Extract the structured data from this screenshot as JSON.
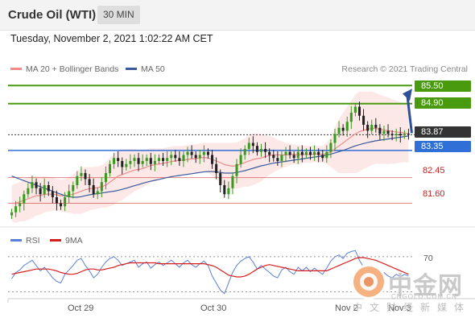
{
  "header": {
    "instrument": "Crude Oil (WTI)",
    "timeframe": "30 MIN"
  },
  "timestamp": "Tuesday, November 2, 2021 1:02:22 AM CET",
  "legend": {
    "ma20_label": "MA 20 + Bollinger Bands",
    "ma50_label": "MA 50",
    "credit": "Research © 2021 Trading Central",
    "ma20_color": "#f08a8a",
    "ma50_color": "#3a5a9a",
    "band_color": "#fde2e2"
  },
  "rsi_legend": {
    "rsi_label": "RSI",
    "ma9_label": "9MA",
    "rsi_color": "#5b7fd8",
    "ma9_color": "#d81c1c"
  },
  "levels": {
    "target2": "85.50",
    "target1": "84.90",
    "last": "83.87",
    "pivot": "83.35",
    "support1": "82.45",
    "support2": "81.60"
  },
  "colors": {
    "resistance": "#4a9a10",
    "pivot": "#2f6fd6",
    "last": "#333333",
    "support": "#cc2020",
    "arrow": "#2f4f9a"
  },
  "x_axis": {
    "ticks": [
      "Oct 29",
      "Oct 30",
      "Nov 2",
      "Nov 3"
    ]
  },
  "rsi_axis": {
    "level": "70"
  },
  "watermark": {
    "logo_text": "中金网",
    "url": "CNGOLD.COM.CN",
    "sub": "中文财经新媒体"
  },
  "chart_data": {
    "type": "candlestick",
    "title": "Crude Oil (WTI)",
    "interval": "30 MIN",
    "x_ticks": [
      "Oct 29",
      "Oct 30",
      "Nov 2",
      "Nov 3"
    ],
    "ylim": [
      81.0,
      85.8
    ],
    "horizontal_levels": [
      {
        "label": "85.50",
        "value": 85.5,
        "kind": "resistance"
      },
      {
        "label": "84.90",
        "value": 84.9,
        "kind": "resistance"
      },
      {
        "label": "83.87",
        "value": 83.87,
        "kind": "last"
      },
      {
        "label": "83.35",
        "value": 83.35,
        "kind": "pivot"
      },
      {
        "label": "82.45",
        "value": 82.45,
        "kind": "support"
      },
      {
        "label": "81.60",
        "value": 81.6,
        "kind": "support"
      }
    ],
    "close": [
      81.3,
      81.5,
      81.6,
      81.9,
      82.1,
      82.3,
      82.1,
      81.9,
      82.2,
      82.0,
      81.8,
      81.6,
      81.5,
      81.8,
      82.0,
      82.2,
      82.5,
      82.6,
      82.4,
      82.2,
      81.9,
      82.0,
      82.3,
      82.6,
      82.9,
      83.1,
      83.0,
      82.8,
      82.9,
      83.0,
      83.1,
      82.9,
      83.0,
      83.1,
      82.9,
      83.0,
      83.1,
      83.0,
      83.1,
      83.2,
      83.1,
      83.0,
      83.2,
      83.3,
      83.2,
      83.1,
      83.2,
      83.3,
      83.2,
      82.9,
      82.6,
      82.2,
      81.9,
      82.1,
      82.5,
      82.9,
      83.2,
      83.4,
      83.6,
      83.5,
      83.3,
      83.4,
      83.3,
      83.2,
      83.1,
      83.0,
      83.2,
      83.3,
      83.2,
      83.1,
      83.3,
      83.2,
      83.3,
      83.2,
      83.3,
      83.2,
      83.1,
      83.3,
      83.6,
      83.9,
      84.1,
      84.0,
      84.3,
      84.6,
      84.8,
      84.5,
      84.2,
      84.0,
      84.2,
      84.1,
      83.9,
      84.0,
      83.9,
      83.85,
      83.9,
      83.85,
      83.9,
      83.87
    ],
    "ma20": [
      81.6,
      81.6,
      81.65,
      81.7,
      81.75,
      81.8,
      81.85,
      81.85,
      81.9,
      81.9,
      81.9,
      81.88,
      81.85,
      81.85,
      81.87,
      81.9,
      81.95,
      82.0,
      82.05,
      82.08,
      82.1,
      82.12,
      82.15,
      82.2,
      82.3,
      82.4,
      82.5,
      82.55,
      82.6,
      82.65,
      82.7,
      82.72,
      82.75,
      82.8,
      82.85,
      82.88,
      82.9,
      82.92,
      82.95,
      82.98,
      83.0,
      83.02,
      83.03,
      83.05,
      83.07,
      83.08,
      83.1,
      83.12,
      83.1,
      83.05,
      83.0,
      82.95,
      82.88,
      82.85,
      82.83,
      82.85,
      82.9,
      82.95,
      83.0,
      83.05,
      83.08,
      83.1,
      83.15,
      83.18,
      83.2,
      83.2,
      83.2,
      83.2,
      83.22,
      83.22,
      83.2,
      83.22,
      83.22,
      83.22,
      83.23,
      83.23,
      83.22,
      83.25,
      83.3,
      83.4,
      83.5,
      83.6,
      83.7,
      83.8,
      83.9,
      83.97,
      84.02,
      84.05,
      84.08,
      84.08,
      84.05,
      84.03,
      84.0,
      83.98,
      83.96,
      83.95,
      83.93,
      83.9
    ],
    "bollinger_upper": [
      82.2,
      82.25,
      82.3,
      82.4,
      82.45,
      82.5,
      82.5,
      82.48,
      82.5,
      82.48,
      82.45,
      82.4,
      82.38,
      82.4,
      82.45,
      82.55,
      82.65,
      82.75,
      82.8,
      82.8,
      82.8,
      82.82,
      82.85,
      82.95,
      83.1,
      83.25,
      83.35,
      83.4,
      83.4,
      83.4,
      83.4,
      83.38,
      83.38,
      83.4,
      83.42,
      83.42,
      83.42,
      83.42,
      83.45,
      83.48,
      83.5,
      83.5,
      83.5,
      83.52,
      83.55,
      83.55,
      83.58,
      83.6,
      83.6,
      83.6,
      83.6,
      83.6,
      83.6,
      83.6,
      83.6,
      83.62,
      83.68,
      83.75,
      83.85,
      83.9,
      83.9,
      83.88,
      83.85,
      83.82,
      83.78,
      83.7,
      83.65,
      83.6,
      83.58,
      83.55,
      83.52,
      83.52,
      83.5,
      83.5,
      83.5,
      83.5,
      83.5,
      83.6,
      83.8,
      84.1,
      84.4,
      84.6,
      84.8,
      85.0,
      85.2,
      85.3,
      85.3,
      85.3,
      85.3,
      85.25,
      85.2,
      85.15,
      85.1,
      85.05,
      85.0,
      84.95,
      84.9,
      84.85
    ],
    "bollinger_lower": [
      81.0,
      80.95,
      81.0,
      81.0,
      81.05,
      81.1,
      81.2,
      81.22,
      81.3,
      81.32,
      81.35,
      81.36,
      81.32,
      81.3,
      81.29,
      81.25,
      81.25,
      81.25,
      81.3,
      81.36,
      81.4,
      81.42,
      81.45,
      81.45,
      81.5,
      81.55,
      81.65,
      81.7,
      81.8,
      81.9,
      82.0,
      82.06,
      82.12,
      82.2,
      82.28,
      82.34,
      82.38,
      82.42,
      82.45,
      82.48,
      82.5,
      82.54,
      82.56,
      82.58,
      82.59,
      82.61,
      82.62,
      82.64,
      82.6,
      82.5,
      82.4,
      82.3,
      82.16,
      82.1,
      82.06,
      82.08,
      82.12,
      82.15,
      82.15,
      82.2,
      82.26,
      82.32,
      82.45,
      82.54,
      82.62,
      82.7,
      82.75,
      82.8,
      82.86,
      82.89,
      82.88,
      82.92,
      82.94,
      82.94,
      82.96,
      82.96,
      82.94,
      82.9,
      82.8,
      82.7,
      82.6,
      82.6,
      82.6,
      82.6,
      82.6,
      82.64,
      82.74,
      82.8,
      82.86,
      82.91,
      82.9,
      82.91,
      82.9,
      82.91,
      82.92,
      82.95,
      82.96,
      82.95
    ],
    "ma50": [
      82.5,
      82.45,
      82.4,
      82.35,
      82.3,
      82.25,
      82.2,
      82.15,
      82.1,
      82.05,
      82.0,
      81.95,
      81.9,
      81.85,
      81.82,
      81.8,
      81.8,
      81.82,
      81.85,
      81.88,
      81.9,
      81.92,
      81.94,
      81.96,
      81.98,
      82.0,
      82.03,
      82.06,
      82.1,
      82.14,
      82.18,
      82.22,
      82.26,
      82.3,
      82.33,
      82.36,
      82.39,
      82.42,
      82.45,
      82.48,
      82.5,
      82.52,
      82.54,
      82.56,
      82.58,
      82.6,
      82.62,
      82.64,
      82.65,
      82.65,
      82.64,
      82.62,
      82.6,
      82.6,
      82.6,
      82.62,
      82.65,
      82.68,
      82.72,
      82.76,
      82.8,
      82.84,
      82.87,
      82.9,
      82.93,
      82.95,
      82.97,
      82.99,
      83.01,
      83.03,
      83.05,
      83.07,
      83.09,
      83.11,
      83.13,
      83.15,
      83.17,
      83.2,
      83.23,
      83.27,
      83.31,
      83.35,
      83.4,
      83.45,
      83.5,
      83.54,
      83.58,
      83.61,
      83.64,
      83.67,
      83.69,
      83.71,
      83.73,
      83.75,
      83.77,
      83.79,
      83.81,
      83.83
    ],
    "rsi_level": 70,
    "rsi": [
      45,
      52,
      55,
      60,
      63,
      66,
      60,
      54,
      58,
      52,
      46,
      42,
      40,
      50,
      55,
      60,
      66,
      68,
      60,
      54,
      46,
      50,
      58,
      64,
      68,
      70,
      66,
      60,
      62,
      64,
      66,
      58,
      62,
      64,
      57,
      61,
      64,
      60,
      63,
      66,
      62,
      58,
      63,
      66,
      61,
      58,
      62,
      65,
      60,
      48,
      40,
      32,
      28,
      40,
      52,
      60,
      65,
      68,
      70,
      64,
      56,
      60,
      56,
      52,
      48,
      46,
      55,
      58,
      53,
      50,
      58,
      54,
      58,
      53,
      57,
      53,
      50,
      57,
      65,
      70,
      72,
      68,
      74,
      76,
      77,
      66,
      58,
      52,
      60,
      55,
      48,
      52,
      48,
      46,
      50,
      47,
      50,
      48
    ],
    "rsi_ma9": [
      50,
      51,
      52,
      53,
      54,
      55,
      56,
      56,
      56,
      56,
      55,
      54,
      52,
      51,
      50,
      50,
      51,
      53,
      55,
      56,
      56,
      55,
      55,
      56,
      57,
      58,
      60,
      61,
      62,
      63,
      63,
      63,
      63,
      63,
      63,
      63,
      62,
      62,
      62,
      62,
      62,
      62,
      62,
      62,
      62,
      62,
      62,
      62,
      61,
      60,
      58,
      55,
      52,
      49,
      48,
      47,
      47,
      48,
      50,
      53,
      56,
      58,
      60,
      61,
      60,
      59,
      58,
      57,
      56,
      55,
      54,
      54,
      54,
      54,
      54,
      54,
      54,
      54,
      56,
      58,
      60,
      62,
      64,
      66,
      68,
      69,
      69,
      68,
      67,
      66,
      64,
      62,
      60,
      58,
      56,
      54,
      52,
      50
    ]
  }
}
